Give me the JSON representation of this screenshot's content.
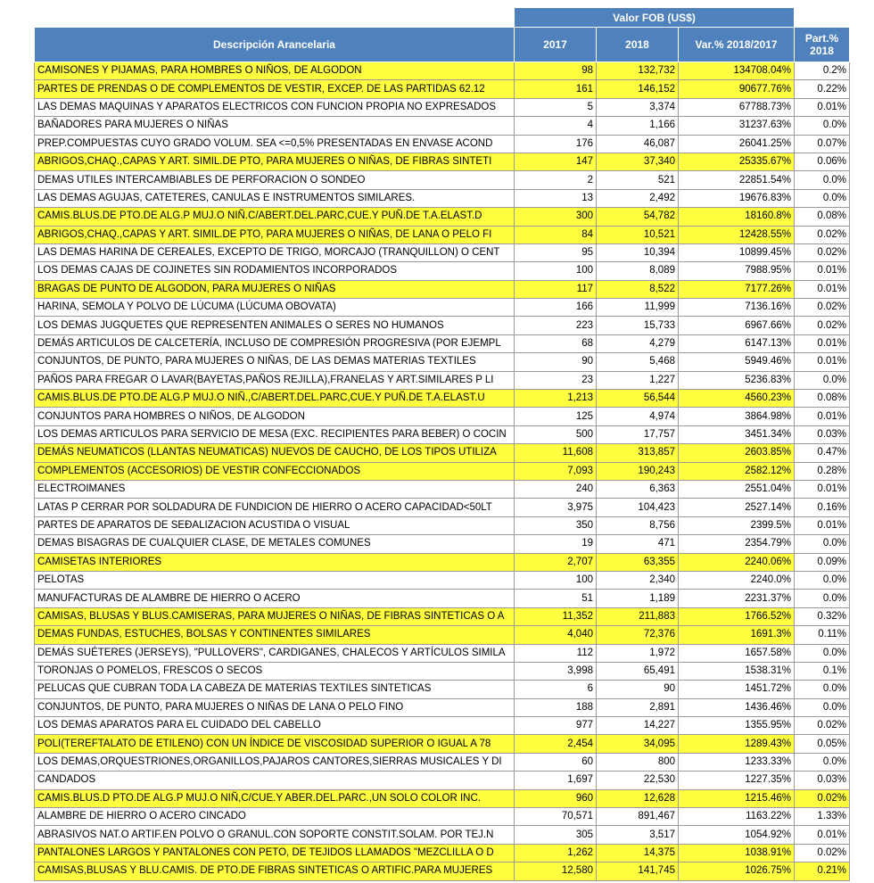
{
  "header": {
    "group": "Valor FOB (US$)",
    "columns": [
      "Descripción Arancelaria",
      "2017",
      "2018",
      "Var.% 2018/2017",
      "Part.% 2018"
    ],
    "fill": "#4f81bd"
  },
  "table": {
    "rows": [
      {
        "cells": [
          "CAMISONES Y PIJAMAS, PARA HOMBRES O NIÑOS, DE ALGODON",
          "98",
          "132,732",
          "134708.04%",
          "0.2%"
        ],
        "fill": "#ffff40"
      },
      {
        "cells": [
          "PARTES DE PRENDAS O DE COMPLEMENTOS DE VESTIR, EXCEP. DE LAS PARTIDAS 62.12",
          "161",
          "146,152",
          "90677.76%",
          "0.22%"
        ],
        "fill": "#ffff40"
      },
      {
        "cells": [
          "LAS DEMAS MAQUINAS Y APARATOS ELECTRICOS CON FUNCION PROPIA NO EXPRESADOS",
          "5",
          "3,374",
          "67788.73%",
          "0.01%"
        ]
      },
      {
        "cells": [
          "BAÑADORES PARA MUJERES O NIÑAS",
          "4",
          "1,166",
          "31237.63%",
          "0.0%"
        ]
      },
      {
        "cells": [
          "PREP.COMPUESTAS CUYO GRADO VOLUM. SEA <=0,5% PRESENTADAS EN ENVASE ACOND",
          "176",
          "46,087",
          "26041.25%",
          "0.07%"
        ]
      },
      {
        "cells": [
          "ABRIGOS,CHAQ.,CAPAS Y ART. SIMIL.DE PTO, PARA MUJERES O NIÑAS, DE FIBRAS SINTETI",
          "147",
          "37,340",
          "25335.67%",
          "0.06%"
        ],
        "fill": "#ffff40"
      },
      {
        "cells": [
          "DEMAS UTILES INTERCAMBIABLES DE PERFORACION O SONDEO",
          "2",
          "521",
          "22851.54%",
          "0.0%"
        ]
      },
      {
        "cells": [
          "LAS DEMAS AGUJAS, CATETERES, CANULAS E INSTRUMENTOS SIMILARES.",
          "13",
          "2,492",
          "19676.83%",
          "0.0%"
        ]
      },
      {
        "cells": [
          "CAMIS.BLUS.DE PTO.DE ALG.P MUJ.O NIÑ.C/ABERT.DEL.PARC,CUE.Y PUÑ.DE T.A.ELAST.D",
          "300",
          "54,782",
          "18160.8%",
          "0.08%"
        ],
        "fill": "#ffff40"
      },
      {
        "cells": [
          "ABRIGOS,CHAQ.,CAPAS Y ART. SIMIL.DE PTO, PARA MUJERES O NIÑAS, DE LANA O PELO FI",
          "84",
          "10,521",
          "12428.55%",
          "0.02%"
        ],
        "fill": "#ffff40"
      },
      {
        "cells": [
          "LAS DEMAS HARINA DE CEREALES, EXCEPTO DE TRIGO, MORCAJO (TRANQUILLON) O CENT",
          "95",
          "10,394",
          "10899.45%",
          "0.02%"
        ]
      },
      {
        "cells": [
          "LOS DEMAS CAJAS DE COJINETES SIN RODAMIENTOS INCORPORADOS",
          "100",
          "8,089",
          "7988.95%",
          "0.01%"
        ]
      },
      {
        "cells": [
          "BRAGAS DE PUNTO DE ALGODON, PARA MUJERES O NIÑAS",
          "117",
          "8,522",
          "7177.26%",
          "0.01%"
        ],
        "fill": "#ffff40"
      },
      {
        "cells": [
          "HARINA, SEMOLA Y POLVO DE LÚCUMA (LÚCUMA OBOVATA)",
          "166",
          "11,999",
          "7136.16%",
          "0.02%"
        ]
      },
      {
        "cells": [
          "LOS DEMAS JUGQUETES QUE REPRESENTEN ANIMALES O SERES NO HUMANOS",
          "223",
          "15,733",
          "6967.66%",
          "0.02%"
        ]
      },
      {
        "cells": [
          "DEMÁS ARTICULOS DE CALCETERÍA, INCLUSO DE COMPRESIÓN PROGRESIVA (POR EJEMPL",
          "68",
          "4,279",
          "6147.13%",
          "0.01%"
        ]
      },
      {
        "cells": [
          "CONJUNTOS, DE PUNTO, PARA MUJERES O NIÑAS, DE LAS DEMAS MATERIAS TEXTILES",
          "90",
          "5,468",
          "5949.46%",
          "0.01%"
        ]
      },
      {
        "cells": [
          "PAÑOS PARA FREGAR O LAVAR(BAYETAS,PAÑOS REJILLA),FRANELAS Y ART.SIMILARES P LI",
          "23",
          "1,227",
          "5236.83%",
          "0.0%"
        ]
      },
      {
        "cells": [
          "CAMIS.BLUS.DE PTO.DE ALG.P MUJ.O NIÑ.,C/ABERT.DEL.PARC,CUE.Y PUÑ.DE T.A.ELAST.U",
          "1,213",
          "56,544",
          "4560.23%",
          "0.08%"
        ],
        "fill": "#ffff40"
      },
      {
        "cells": [
          "CONJUNTOS PARA HOMBRES O NIÑOS, DE ALGODON",
          "125",
          "4,974",
          "3864.98%",
          "0.01%"
        ]
      },
      {
        "cells": [
          "LOS DEMAS ARTICULOS PARA SERVICIO DE MESA (EXC. RECIPIENTES PARA BEBER) O COCIN",
          "500",
          "17,757",
          "3451.34%",
          "0.03%"
        ]
      },
      {
        "cells": [
          "DEMÁS NEUMATICOS (LLANTAS NEUMATICAS) NUEVOS DE CAUCHO, DE LOS TIPOS UTILIZA",
          "11,608",
          "313,857",
          "2603.85%",
          "0.47%"
        ],
        "fill": "#ffff40"
      },
      {
        "cells": [
          "COMPLEMENTOS (ACCESORIOS) DE VESTIR CONFECCIONADOS",
          "7,093",
          "190,243",
          "2582.12%",
          "0.28%"
        ],
        "fill": "#ffff40"
      },
      {
        "cells": [
          "ELECTROIMANES",
          "240",
          "6,363",
          "2551.04%",
          "0.01%"
        ]
      },
      {
        "cells": [
          "LATAS P  CERRAR POR SOLDADURA DE FUNDICION DE HIERRO O ACERO CAPACIDAD<50LT",
          "3,975",
          "104,423",
          "2527.14%",
          "0.16%"
        ]
      },
      {
        "cells": [
          "PARTES DE  APARATOS DE SEÐALIZACION ACUSTIDA O VISUAL",
          "350",
          "8,756",
          "2399.5%",
          "0.01%"
        ]
      },
      {
        "cells": [
          "DEMAS BISAGRAS DE CUALQUIER CLASE, DE METALES COMUNES",
          "19",
          "471",
          "2354.79%",
          "0.0%"
        ]
      },
      {
        "cells": [
          "CAMISETAS INTERIORES",
          "2,707",
          "63,355",
          "2240.06%",
          "0.09%"
        ],
        "fill": "#ffff40"
      },
      {
        "cells": [
          "PELOTAS",
          "100",
          "2,340",
          "2240.0%",
          "0.0%"
        ]
      },
      {
        "cells": [
          "MANUFACTURAS DE ALAMBRE DE HIERRO O ACERO",
          "51",
          "1,189",
          "2231.37%",
          "0.0%"
        ]
      },
      {
        "cells": [
          "CAMISAS, BLUSAS Y BLUS.CAMISERAS, PARA MUJERES O NIÑAS, DE FIBRAS SINTETICAS O A",
          "11,352",
          "211,883",
          "1766.52%",
          "0.32%"
        ],
        "fill": "#ffff40"
      },
      {
        "cells": [
          "DEMAS FUNDAS, ESTUCHES, BOLSAS Y CONTINENTES SIMILARES",
          "4,040",
          "72,376",
          "1691.3%",
          "0.11%"
        ],
        "fill": "#ffff40"
      },
      {
        "cells": [
          "DEMÁS SUÉTERES (JERSEYS), \"PULLOVERS\", CARDIGANES, CHALECOS Y ARTÍCULOS SIMILA",
          "112",
          "1,972",
          "1657.58%",
          "0.0%"
        ]
      },
      {
        "cells": [
          "TORONJAS O POMELOS, FRESCOS O SECOS",
          "3,998",
          "65,491",
          "1538.31%",
          "0.1%"
        ]
      },
      {
        "cells": [
          "PELUCAS QUE CUBRAN TODA LA CABEZA DE MATERIAS TEXTILES SINTETICAS",
          "6",
          "90",
          "1451.72%",
          "0.0%"
        ]
      },
      {
        "cells": [
          "CONJUNTOS, DE PUNTO, PARA MUJERES O NIÑAS DE LANA O PELO FINO",
          "188",
          "2,891",
          "1436.46%",
          "0.0%"
        ]
      },
      {
        "cells": [
          "LOS DEMAS APARATOS PARA EL CUIDADO DEL CABELLO",
          "977",
          "14,227",
          "1355.95%",
          "0.02%"
        ]
      },
      {
        "cells": [
          "POLI(TEREFTALATO DE ETILENO) CON UN ÍNDICE DE VISCOSIDAD SUPERIOR O IGUAL A 78",
          "2,454",
          "34,095",
          "1289.43%",
          "0.05%"
        ],
        "fill": "#ffff40"
      },
      {
        "cells": [
          "LOS DEMAS,ORQUESTRIONES,ORGANILLOS,PAJAROS CANTORES,SIERRAS MUSICALES Y DI",
          "60",
          "800",
          "1233.33%",
          "0.0%"
        ]
      },
      {
        "cells": [
          "CANDADOS",
          "1,697",
          "22,530",
          "1227.35%",
          "0.03%"
        ]
      },
      {
        "cells": [
          "CAMIS.BLUS.D PTO.DE ALG.P MUJ.O NIÑ,C/CUE.Y ABER.DEL.PARC.,UN SOLO COLOR INC.",
          "960",
          "12,628",
          "1215.46%",
          "0.02%"
        ],
        "fill": "#ffff40",
        "share_fill": "#ffff40"
      },
      {
        "cells": [
          "ALAMBRE DE HIERRO O ACERO CINCADO",
          "70,571",
          "891,467",
          "1163.22%",
          "1.33%"
        ]
      },
      {
        "cells": [
          "ABRASIVOS NAT.O ARTIF.EN POLVO O GRANUL.CON SOPORTE CONSTIT.SOLAM. POR TEJ.N",
          "305",
          "3,517",
          "1054.92%",
          "0.01%"
        ]
      },
      {
        "cells": [
          "PANTALONES LARGOS Y PANTALONES CON PETO, DE TEJIDOS LLAMADOS \"MEZCLILLA O D",
          "1,262",
          "14,375",
          "1038.91%",
          "0.02%"
        ],
        "fill": "#ffff40"
      },
      {
        "cells": [
          "CAMISAS,BLUSAS Y BLU.CAMIS. DE PTO.DE FIBRAS SINTETICAS O ARTIFIC.PARA MUJERES",
          "12,580",
          "141,745",
          "1026.75%",
          "0.21%"
        ],
        "fill": "#ffff40",
        "share_fill": "#ffff40"
      }
    ]
  }
}
